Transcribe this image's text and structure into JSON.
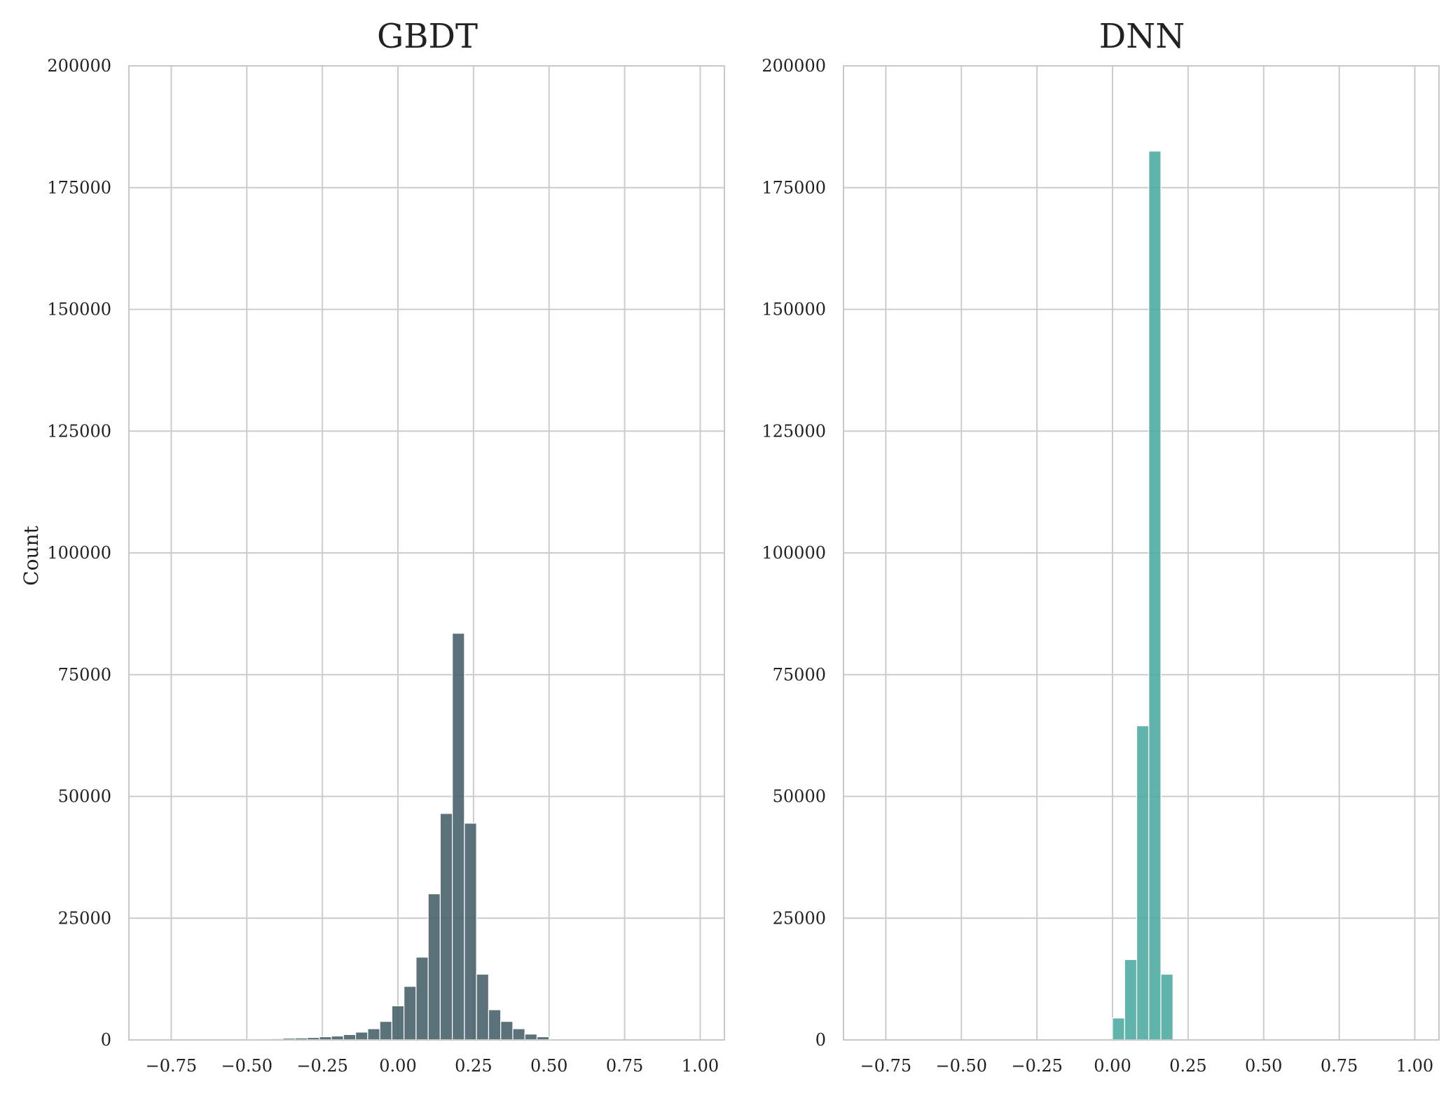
{
  "chart_data": [
    {
      "type": "bar",
      "title": "GBDT",
      "xlabel": "",
      "ylabel": "Count",
      "xlim": [
        -0.89,
        1.08
      ],
      "ylim": [
        0,
        200000
      ],
      "grid": true,
      "color": "#445e68",
      "bin_width": 0.04,
      "x_ticks": [
        -0.75,
        -0.5,
        -0.25,
        0.0,
        0.25,
        0.5,
        0.75,
        1.0
      ],
      "x_tick_labels": [
        "−0.75",
        "−0.50",
        "−0.25",
        "0.00",
        "0.25",
        "0.50",
        "0.75",
        "1.00"
      ],
      "y_ticks": [
        0,
        25000,
        50000,
        75000,
        100000,
        125000,
        150000,
        175000,
        200000
      ],
      "y_tick_labels": [
        "0",
        "25000",
        "50000",
        "75000",
        "100000",
        "125000",
        "150000",
        "175000",
        "200000"
      ],
      "bins": [
        {
          "x0": -0.5,
          "x1": -0.46,
          "count": 150
        },
        {
          "x0": -0.46,
          "x1": -0.42,
          "count": 200
        },
        {
          "x0": -0.42,
          "x1": -0.38,
          "count": 250
        },
        {
          "x0": -0.38,
          "x1": -0.34,
          "count": 350
        },
        {
          "x0": -0.34,
          "x1": -0.3,
          "count": 400
        },
        {
          "x0": -0.3,
          "x1": -0.26,
          "count": 500
        },
        {
          "x0": -0.26,
          "x1": -0.22,
          "count": 650
        },
        {
          "x0": -0.22,
          "x1": -0.18,
          "count": 800
        },
        {
          "x0": -0.18,
          "x1": -0.14,
          "count": 1100
        },
        {
          "x0": -0.14,
          "x1": -0.1,
          "count": 1600
        },
        {
          "x0": -0.1,
          "x1": -0.06,
          "count": 2300
        },
        {
          "x0": -0.06,
          "x1": -0.02,
          "count": 3800
        },
        {
          "x0": -0.02,
          "x1": 0.02,
          "count": 7000
        },
        {
          "x0": 0.02,
          "x1": 0.06,
          "count": 11000
        },
        {
          "x0": 0.06,
          "x1": 0.1,
          "count": 17000
        },
        {
          "x0": 0.1,
          "x1": 0.14,
          "count": 30000
        },
        {
          "x0": 0.14,
          "x1": 0.18,
          "count": 46500
        },
        {
          "x0": 0.18,
          "x1": 0.22,
          "count": 83500
        },
        {
          "x0": 0.22,
          "x1": 0.26,
          "count": 44500
        },
        {
          "x0": 0.26,
          "x1": 0.3,
          "count": 13500
        },
        {
          "x0": 0.3,
          "x1": 0.34,
          "count": 6200
        },
        {
          "x0": 0.34,
          "x1": 0.38,
          "count": 3800
        },
        {
          "x0": 0.38,
          "x1": 0.42,
          "count": 2300
        },
        {
          "x0": 0.42,
          "x1": 0.46,
          "count": 1200
        },
        {
          "x0": 0.46,
          "x1": 0.5,
          "count": 650
        },
        {
          "x0": 0.5,
          "x1": 0.54,
          "count": 200
        },
        {
          "x0": 0.54,
          "x1": 0.58,
          "count": 100
        },
        {
          "x0": 0.58,
          "x1": 0.62,
          "count": 60
        },
        {
          "x0": 0.62,
          "x1": 0.66,
          "count": 40
        },
        {
          "x0": 0.66,
          "x1": 0.7,
          "count": 30
        }
      ]
    },
    {
      "type": "bar",
      "title": "DNN",
      "xlabel": "",
      "ylabel": "",
      "xlim": [
        -0.89,
        1.08
      ],
      "ylim": [
        0,
        200000
      ],
      "grid": true,
      "color": "#4aaa9f",
      "bin_width": 0.04,
      "x_ticks": [
        -0.75,
        -0.5,
        -0.25,
        0.0,
        0.25,
        0.5,
        0.75,
        1.0
      ],
      "x_tick_labels": [
        "−0.75",
        "−0.50",
        "−0.25",
        "0.00",
        "0.25",
        "0.50",
        "0.75",
        "1.00"
      ],
      "y_ticks": [
        0,
        25000,
        50000,
        75000,
        100000,
        125000,
        150000,
        175000,
        200000
      ],
      "y_tick_labels": [
        "0",
        "25000",
        "50000",
        "75000",
        "100000",
        "125000",
        "150000",
        "175000",
        "200000"
      ],
      "bins": [
        {
          "x0": 0.0,
          "x1": 0.04,
          "count": 4500
        },
        {
          "x0": 0.04,
          "x1": 0.08,
          "count": 16500
        },
        {
          "x0": 0.08,
          "x1": 0.12,
          "count": 64500
        },
        {
          "x0": 0.12,
          "x1": 0.16,
          "count": 182500
        },
        {
          "x0": 0.16,
          "x1": 0.2,
          "count": 13500
        }
      ]
    }
  ]
}
